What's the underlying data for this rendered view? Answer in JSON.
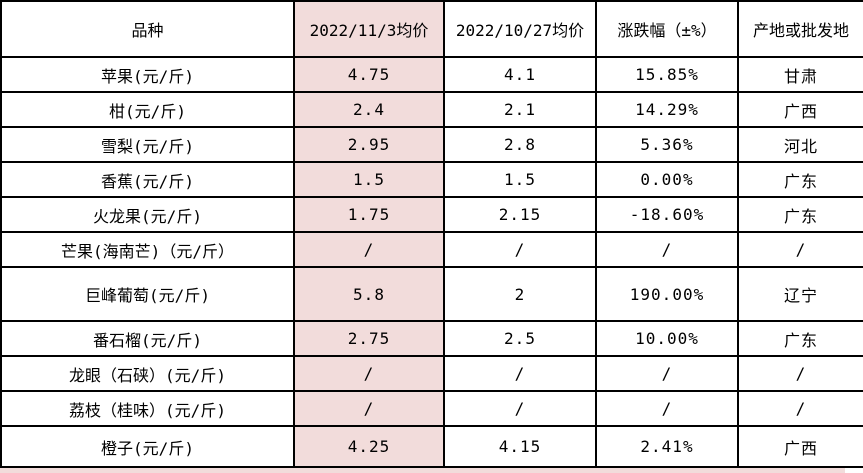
{
  "colors": {
    "highlight": "#F2DCDB",
    "border": "#000000"
  },
  "table": {
    "columns": [
      {
        "key": "variety",
        "label": "品种",
        "highlight": false
      },
      {
        "key": "price_new",
        "label": "2022/11/3均价",
        "highlight": true
      },
      {
        "key": "price_old",
        "label": "2022/10/27均价",
        "highlight": false
      },
      {
        "key": "change",
        "label": "涨跌幅（±%）",
        "highlight": false
      },
      {
        "key": "origin",
        "label": "产地或批发地",
        "highlight": false
      }
    ],
    "rows": [
      {
        "variety": "苹果(元/斤)",
        "price_new": "4.75",
        "price_old": "4.1",
        "change": "15.85%",
        "origin": "甘肃"
      },
      {
        "variety": "柑(元/斤)",
        "price_new": "2.4",
        "price_old": "2.1",
        "change": "14.29%",
        "origin": "广西"
      },
      {
        "variety": "雪梨(元/斤)",
        "price_new": "2.95",
        "price_old": "2.8",
        "change": "5.36%",
        "origin": "河北"
      },
      {
        "variety": "香蕉(元/斤)",
        "price_new": "1.5",
        "price_old": "1.5",
        "change": "0.00%",
        "origin": "广东"
      },
      {
        "variety": "火龙果(元/斤)",
        "price_new": "1.75",
        "price_old": "2.15",
        "change": "-18.60%",
        "origin": "广东"
      },
      {
        "variety": "芒果(海南芒)（元/斤）",
        "price_new": "/",
        "price_old": "/",
        "change": "/",
        "origin": "/"
      },
      {
        "variety": "巨峰葡萄(元/斤)",
        "price_new": "5.8",
        "price_old": "2",
        "change": "190.00%",
        "origin": "辽宁"
      },
      {
        "variety": "番石榴(元/斤)",
        "price_new": "2.75",
        "price_old": "2.5",
        "change": "10.00%",
        "origin": "广东"
      },
      {
        "variety": "龙眼（石硖）(元/斤)",
        "price_new": "/",
        "price_old": "/",
        "change": "/",
        "origin": "/"
      },
      {
        "variety": "荔枝（桂味）(元/斤)",
        "price_new": "/",
        "price_old": "/",
        "change": "/",
        "origin": "/"
      },
      {
        "variety": "橙子(元/斤)",
        "price_new": "4.25",
        "price_old": "4.15",
        "change": "2.41%",
        "origin": "广西"
      }
    ]
  }
}
